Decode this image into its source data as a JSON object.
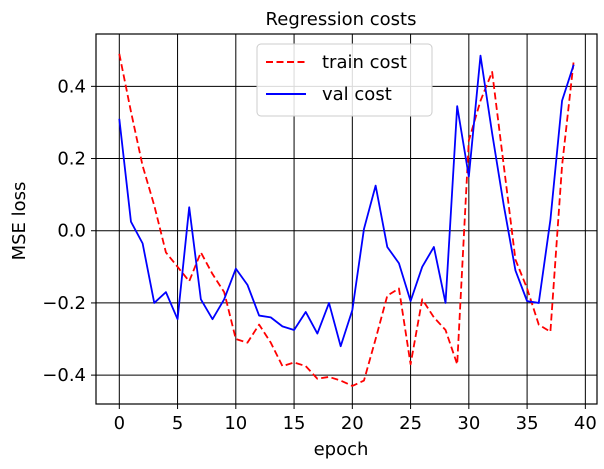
{
  "chart_data": {
    "type": "line",
    "title": "Regression costs",
    "xlabel": "epoch",
    "ylabel": "MSE loss",
    "xlim": [
      -2,
      41
    ],
    "ylim": [
      -0.48,
      0.545
    ],
    "xticks": [
      0,
      5,
      10,
      15,
      20,
      25,
      30,
      35,
      40
    ],
    "yticks": [
      -0.4,
      -0.2,
      0.0,
      0.2,
      0.4
    ],
    "ytick_labels": [
      "−0.4",
      "−0.2",
      "0.0",
      "0.2",
      "0.4"
    ],
    "grid": true,
    "legend_position": "top-center",
    "x": [
      0,
      1,
      2,
      3,
      4,
      5,
      6,
      7,
      8,
      9,
      10,
      11,
      12,
      13,
      14,
      15,
      16,
      17,
      18,
      19,
      20,
      21,
      22,
      23,
      24,
      25,
      26,
      27,
      28,
      29,
      30,
      31,
      32,
      33,
      34,
      35,
      36,
      37,
      38,
      39
    ],
    "series": [
      {
        "name": "train cost",
        "color": "#ff0000",
        "style": "dashed",
        "values": [
          0.49,
          0.33,
          0.18,
          0.07,
          -0.06,
          -0.1,
          -0.14,
          -0.06,
          -0.12,
          -0.17,
          -0.3,
          -0.31,
          -0.26,
          -0.31,
          -0.375,
          -0.365,
          -0.375,
          -0.41,
          -0.405,
          -0.415,
          -0.43,
          -0.415,
          -0.3,
          -0.18,
          -0.16,
          -0.37,
          -0.19,
          -0.24,
          -0.275,
          -0.37,
          0.25,
          0.36,
          0.44,
          0.18,
          -0.08,
          -0.16,
          -0.26,
          -0.28,
          0.18,
          0.47
        ]
      },
      {
        "name": "val cost",
        "color": "#0000ff",
        "style": "solid",
        "values": [
          0.31,
          0.025,
          -0.035,
          -0.2,
          -0.17,
          -0.245,
          0.065,
          -0.19,
          -0.245,
          -0.19,
          -0.105,
          -0.15,
          -0.235,
          -0.24,
          -0.265,
          -0.275,
          -0.225,
          -0.285,
          -0.2,
          -0.32,
          -0.22,
          0.005,
          0.125,
          -0.045,
          -0.09,
          -0.195,
          -0.1,
          -0.045,
          -0.2,
          0.345,
          0.15,
          0.485,
          0.27,
          0.07,
          -0.11,
          -0.195,
          -0.2,
          0.03,
          0.36,
          0.46
        ]
      }
    ]
  }
}
